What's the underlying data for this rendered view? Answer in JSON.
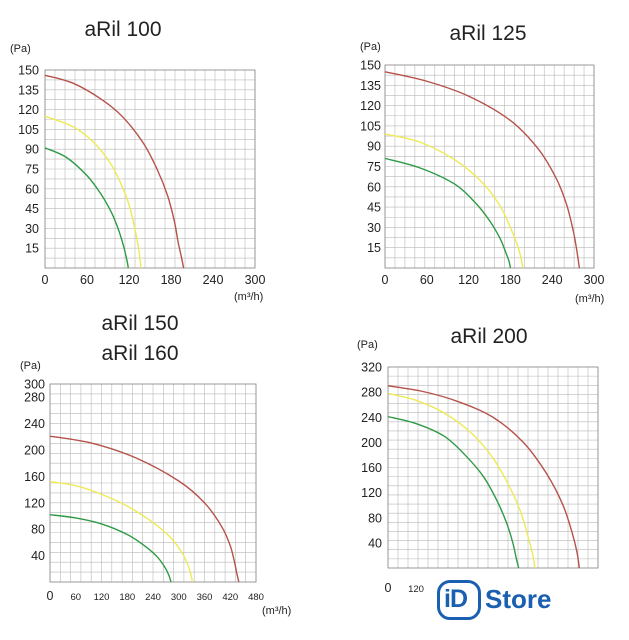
{
  "colors": {
    "red": "#b5524a",
    "yellow": "#eeea55",
    "green": "#2e9a45"
  },
  "logo": {
    "text_prefix": "iD",
    "text_main": "Store",
    "icon": "idstore-logo"
  },
  "chart_data": [
    {
      "type": "line",
      "title_lines": [
        "aRil 100"
      ],
      "y_unit": "(Pa)",
      "x_unit": "(m³/h)",
      "xlim": [
        0,
        300
      ],
      "ylim": [
        0,
        150
      ],
      "grid": true,
      "x_ticks": [
        0,
        60,
        120,
        180,
        240,
        300
      ],
      "y_ticks": [
        15,
        30,
        45,
        60,
        75,
        90,
        105,
        120,
        135,
        150
      ],
      "series": [
        {
          "color": "red",
          "x": [
            0,
            40,
            80,
            110,
            140,
            160,
            175,
            185,
            190,
            195,
            198
          ],
          "y": [
            146,
            140,
            128,
            115,
            95,
            75,
            55,
            35,
            20,
            8,
            0
          ]
        },
        {
          "color": "yellow",
          "x": [
            0,
            40,
            70,
            95,
            110,
            120,
            127,
            132,
            135,
            137
          ],
          "y": [
            115,
            107,
            95,
            78,
            62,
            48,
            33,
            20,
            10,
            0
          ]
        },
        {
          "color": "green",
          "x": [
            0,
            30,
            60,
            80,
            95,
            105,
            112,
            117,
            119
          ],
          "y": [
            91,
            84,
            70,
            56,
            42,
            29,
            17,
            6,
            0
          ]
        }
      ]
    },
    {
      "type": "line",
      "title_lines": [
        "aRil 125"
      ],
      "y_unit": "(Pa)",
      "x_unit": "(m³/h)",
      "xlim": [
        0,
        300
      ],
      "ylim": [
        0,
        150
      ],
      "grid": true,
      "x_ticks": [
        0,
        60,
        120,
        180,
        240,
        300
      ],
      "y_ticks": [
        15,
        30,
        45,
        60,
        75,
        90,
        105,
        120,
        135,
        150
      ],
      "series": [
        {
          "color": "red",
          "x": [
            0,
            60,
            120,
            180,
            220,
            245,
            260,
            270,
            275,
            279
          ],
          "y": [
            145,
            138,
            127,
            109,
            88,
            67,
            48,
            28,
            14,
            0
          ]
        },
        {
          "color": "yellow",
          "x": [
            0,
            50,
            100,
            140,
            165,
            180,
            190,
            195,
            198
          ],
          "y": [
            99,
            93,
            80,
            63,
            46,
            30,
            17,
            8,
            0
          ]
        },
        {
          "color": "green",
          "x": [
            0,
            50,
            100,
            130,
            150,
            165,
            173,
            178,
            180
          ],
          "y": [
            81,
            74,
            62,
            48,
            35,
            22,
            12,
            5,
            0
          ]
        }
      ]
    },
    {
      "type": "line",
      "title_lines": [
        "aRil 150",
        "aRil 160"
      ],
      "y_unit": "(Pa)",
      "x_unit": "(m³/h)",
      "xlim": [
        0,
        480
      ],
      "ylim": [
        0,
        300
      ],
      "grid": true,
      "x_ticks": [
        0,
        60,
        120,
        180,
        240,
        300,
        360,
        420,
        480
      ],
      "y_ticks": [
        40,
        80,
        120,
        160,
        200,
        240,
        280,
        300
      ],
      "series": [
        {
          "color": "red",
          "x": [
            0,
            100,
            200,
            300,
            360,
            400,
            420,
            430,
            435,
            440
          ],
          "y": [
            221,
            210,
            188,
            153,
            120,
            84,
            55,
            30,
            14,
            0
          ]
        },
        {
          "color": "yellow",
          "x": [
            0,
            60,
            120,
            180,
            240,
            280,
            305,
            320,
            328,
            332
          ],
          "y": [
            152,
            146,
            133,
            115,
            90,
            68,
            47,
            28,
            12,
            0
          ]
        },
        {
          "color": "green",
          "x": [
            0,
            60,
            120,
            180,
            220,
            250,
            268,
            277,
            282
          ],
          "y": [
            102,
            97,
            88,
            72,
            55,
            38,
            22,
            10,
            0
          ]
        }
      ]
    },
    {
      "type": "line",
      "title_lines": [
        "aRil 200"
      ],
      "y_unit": "(Pa)",
      "x_unit": "",
      "xlim": [
        0,
        900
      ],
      "ylim": [
        0,
        320
      ],
      "grid": true,
      "x_ticks": [
        0,
        120
      ],
      "y_ticks": [
        40,
        80,
        120,
        160,
        200,
        240,
        280,
        320
      ],
      "series": [
        {
          "color": "red",
          "x": [
            0,
            150,
            300,
            450,
            580,
            680,
            750,
            790,
            810,
            820
          ],
          "y": [
            290,
            281,
            265,
            240,
            200,
            150,
            100,
            55,
            25,
            0
          ]
        },
        {
          "color": "yellow",
          "x": [
            0,
            120,
            240,
            360,
            450,
            520,
            570,
            600,
            620,
            630
          ],
          "y": [
            278,
            267,
            247,
            214,
            175,
            130,
            88,
            50,
            22,
            0
          ]
        },
        {
          "color": "green",
          "x": [
            0,
            120,
            240,
            330,
            410,
            470,
            510,
            535,
            550,
            560
          ],
          "y": [
            241,
            230,
            210,
            180,
            145,
            105,
            70,
            40,
            15,
            0
          ]
        }
      ]
    }
  ]
}
